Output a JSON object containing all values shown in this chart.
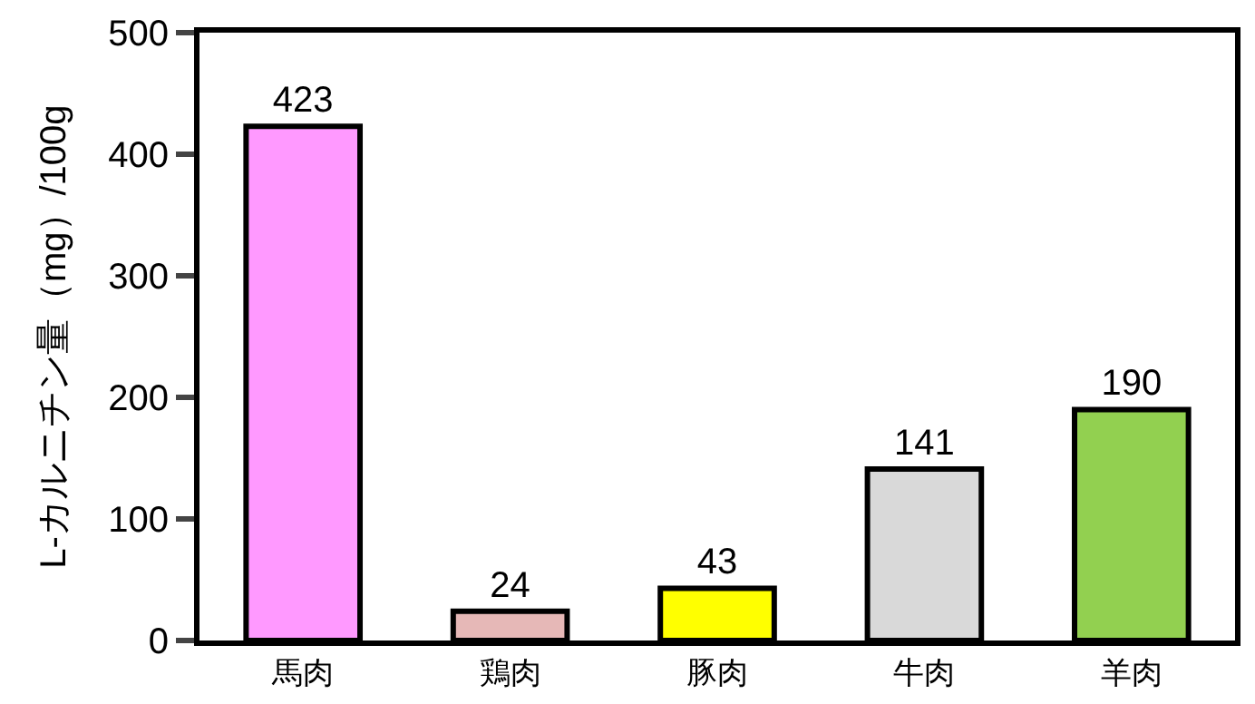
{
  "chart_data": {
    "type": "bar",
    "ylabel": "L-カルニチン量（mg）/100g",
    "categories": [
      "馬肉",
      "鶏肉",
      "豚肉",
      "牛肉",
      "羊肉"
    ],
    "values": [
      423,
      24,
      43,
      141,
      190
    ],
    "colors": [
      "#ff99ff",
      "#e6b8b7",
      "#ffff00",
      "#d9d9d9",
      "#92d050"
    ],
    "ylim": [
      0,
      500
    ],
    "yticks": [
      0,
      100,
      200,
      300,
      400,
      500
    ],
    "data_labels": true
  }
}
